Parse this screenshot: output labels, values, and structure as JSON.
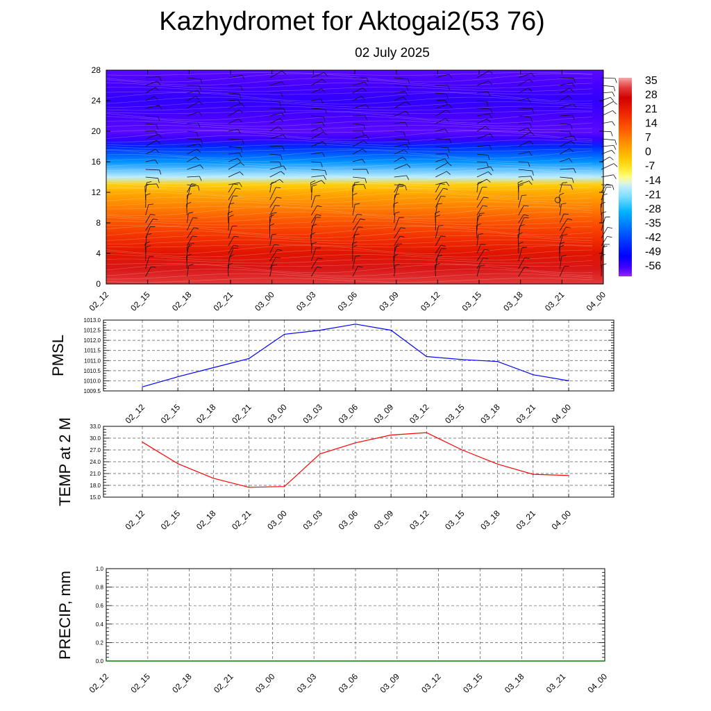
{
  "title": "Kazhydromet for Aktogai2(53 76)",
  "subtitle": "02 July 2025",
  "chart_data": [
    {
      "type": "heatmap",
      "x_ticks": [
        "02_12",
        "02_15",
        "02_18",
        "02_21",
        "03_00",
        "03_03",
        "03_06",
        "03_09",
        "03_12",
        "03_15",
        "03_18",
        "03_21",
        "04_00"
      ],
      "y_ticks": [
        "0",
        "4",
        "8",
        "12",
        "16",
        "20",
        "24",
        "28"
      ],
      "ylim": [
        0,
        28
      ],
      "colorbar": {
        "labels": [
          "35",
          "28",
          "21",
          "14",
          "7",
          "0",
          "-7",
          "-14",
          "-21",
          "-28",
          "-35",
          "-42",
          "-49",
          "-56"
        ],
        "range": [
          -60,
          38
        ]
      },
      "temperature_profile": {
        "levels": [
          0,
          2,
          4,
          6,
          8,
          10,
          12,
          13,
          14,
          16,
          18,
          19,
          20,
          22,
          24,
          26,
          28
        ],
        "values": [
          33,
          30,
          24,
          19,
          14,
          8,
          2,
          -3,
          -16,
          -32,
          -45,
          -55,
          -57,
          -56,
          -54,
          -56,
          -57
        ]
      },
      "wind_barbs": "present",
      "annotation": "calm wind circle near 03_21 at level 11"
    },
    {
      "type": "line",
      "ylabel": "PMSL",
      "x": [
        "02_12",
        "02_15",
        "02_18",
        "02_21",
        "03_00",
        "03_03",
        "03_06",
        "03_09",
        "03_12",
        "03_15",
        "03_18",
        "03_21",
        "04_00"
      ],
      "y_ticks": [
        "1013.0",
        "1012.5",
        "1012.0",
        "1011.5",
        "1011.0",
        "1010.5",
        "1010.0",
        "1009.5"
      ],
      "ylim": [
        1009.5,
        1013.0
      ],
      "values": [
        1009.7,
        1010.2,
        1010.65,
        1011.1,
        1012.3,
        1012.5,
        1012.8,
        1012.5,
        1011.2,
        1011.05,
        1010.95,
        1010.3,
        1010.0
      ],
      "color": "#0000ff"
    },
    {
      "type": "line",
      "ylabel": "TEMP at 2 M",
      "x": [
        "02_12",
        "02_15",
        "02_18",
        "02_21",
        "03_00",
        "03_03",
        "03_06",
        "03_09",
        "03_12",
        "03_15",
        "03_18",
        "03_21",
        "04_00"
      ],
      "y_ticks": [
        "33.0",
        "30.0",
        "27.0",
        "24.0",
        "21.0",
        "18.0",
        "15.0"
      ],
      "ylim": [
        15.0,
        33.0
      ],
      "values": [
        29.0,
        23.5,
        19.8,
        17.5,
        17.7,
        26.0,
        28.8,
        30.8,
        31.4,
        27.0,
        23.4,
        20.8,
        20.5
      ],
      "color": "#ff0000"
    },
    {
      "type": "line",
      "ylabel": "PRECIP, mm",
      "x": [
        "02_12",
        "02_15",
        "02_18",
        "02_21",
        "03_00",
        "03_03",
        "03_06",
        "03_09",
        "03_12",
        "03_15",
        "03_18",
        "03_21",
        "04_00"
      ],
      "y_ticks": [
        "1.0",
        "0.8",
        "0.6",
        "0.4",
        "0.2",
        "0.0"
      ],
      "ylim": [
        0.0,
        1.0
      ],
      "values": [
        0,
        0,
        0,
        0,
        0,
        0,
        0,
        0,
        0,
        0,
        0,
        0,
        0
      ],
      "color": "#008000"
    }
  ]
}
